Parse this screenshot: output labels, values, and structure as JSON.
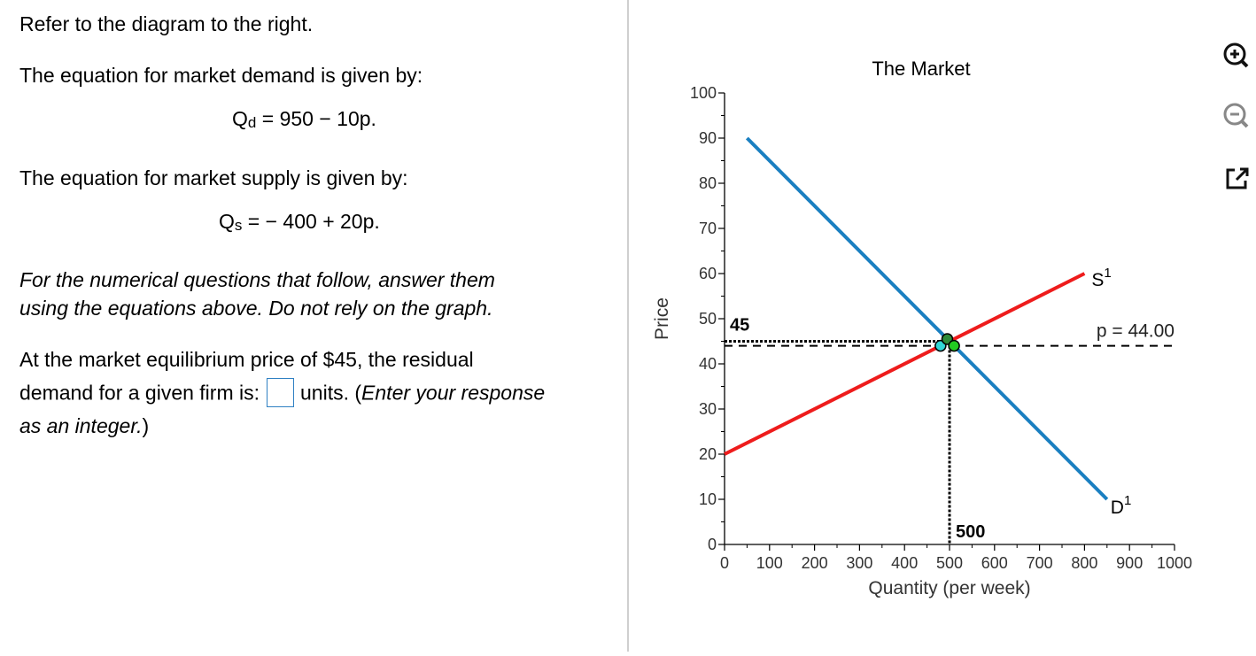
{
  "question": {
    "intro": "Refer to the diagram to the right.",
    "demand_intro": "The equation for market demand is given by:",
    "demand_q": "Q",
    "demand_sub": "d",
    "demand_rhs": " = 950 − 10p.",
    "supply_intro": "The equation for market supply is given by:",
    "supply_q": "Q",
    "supply_sub": "s",
    "supply_rhs": " =  − 400 + 20p.",
    "instruction_line1": "For the numerical questions that follow, answer them",
    "instruction_line2": "using the equations above. Do not rely on the graph.",
    "prompt_line1": "At the market equilibrium price of $45, the residual",
    "prompt_line2_a": "demand for a given firm is:",
    "prompt_line2_b": "units. (",
    "prompt_line2_c": "Enter your response",
    "prompt_line3": "as an integer.",
    "prompt_line3_end": ")",
    "answer_value": ""
  },
  "tools": [
    {
      "icon": "zoom-in-icon"
    },
    {
      "icon": "zoom-out-icon"
    },
    {
      "icon": "open-external-icon"
    }
  ],
  "chart_data": {
    "type": "line",
    "title": "The Market",
    "xlabel": "Quantity (per week)",
    "ylabel": "Price",
    "xlim": [
      0,
      1000
    ],
    "ylim": [
      0,
      100
    ],
    "x_ticks": [
      0,
      100,
      200,
      300,
      400,
      500,
      600,
      700,
      800,
      900,
      1000
    ],
    "y_ticks": [
      0,
      10,
      20,
      30,
      40,
      50,
      60,
      70,
      80,
      90,
      100
    ],
    "grid": false,
    "series": [
      {
        "name": "D",
        "superscript": "1",
        "color": "#1a7fc1",
        "points": [
          [
            50,
            90
          ],
          [
            850,
            10
          ]
        ]
      },
      {
        "name": "S",
        "superscript": "1",
        "color": "#ee1c1c",
        "points": [
          [
            0,
            20
          ],
          [
            800,
            60
          ]
        ]
      }
    ],
    "equilibrium": {
      "price_label": "45",
      "quantity_label": "500",
      "price": 45,
      "quantity": 500,
      "ref_price_text": "p  =  44.00",
      "ref_price": 44
    },
    "points": [
      {
        "x": 480,
        "y": 44,
        "color": "#33d6d6"
      },
      {
        "x": 495,
        "y": 45.5,
        "color": "#2e8b3a"
      },
      {
        "x": 510,
        "y": 44,
        "color": "#22cc22"
      }
    ]
  }
}
